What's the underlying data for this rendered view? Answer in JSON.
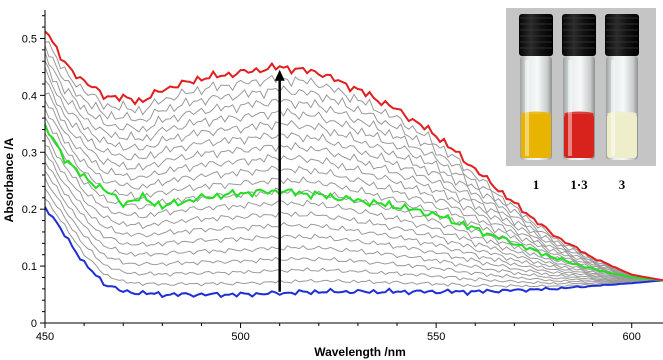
{
  "chart_data": {
    "type": "line",
    "xlabel": "Wavelength /nm",
    "ylabel": "Absorbance /A",
    "xlim": [
      450,
      608
    ],
    "ylim": [
      0,
      0.55
    ],
    "x_ticks": [
      450,
      500,
      550,
      600
    ],
    "y_ticks": [
      0,
      0.1,
      0.2,
      0.3,
      0.4,
      0.5
    ],
    "grid": false,
    "annotation": "upward arrow at about 510 nm indicating absorbance increase",
    "arrow": {
      "x": 510,
      "y_from": 0.055,
      "y_to": 0.445
    },
    "inset_vial_labels": [
      "1",
      "1·3",
      "3"
    ],
    "inset_vial_colors": [
      "#e8b400",
      "#d8231c",
      "#eeeecb"
    ],
    "series": [
      {
        "color": "#1f2fd6",
        "values": [
          [
            450,
            0.205
          ],
          [
            455,
            0.155
          ],
          [
            460,
            0.105
          ],
          [
            465,
            0.07
          ],
          [
            470,
            0.055
          ],
          [
            480,
            0.05
          ],
          [
            500,
            0.05
          ],
          [
            520,
            0.055
          ],
          [
            540,
            0.055
          ],
          [
            560,
            0.055
          ],
          [
            580,
            0.06
          ],
          [
            600,
            0.07
          ],
          [
            608,
            0.075
          ]
        ]
      },
      {
        "color": "#20e020",
        "values": [
          [
            450,
            0.345
          ],
          [
            455,
            0.29
          ],
          [
            460,
            0.255
          ],
          [
            465,
            0.235
          ],
          [
            470,
            0.21
          ],
          [
            475,
            0.22
          ],
          [
            480,
            0.205
          ],
          [
            490,
            0.22
          ],
          [
            500,
            0.228
          ],
          [
            510,
            0.232
          ],
          [
            520,
            0.225
          ],
          [
            530,
            0.215
          ],
          [
            540,
            0.205
          ],
          [
            550,
            0.19
          ],
          [
            560,
            0.165
          ],
          [
            570,
            0.14
          ],
          [
            580,
            0.115
          ],
          [
            590,
            0.095
          ],
          [
            600,
            0.08
          ],
          [
            608,
            0.075
          ]
        ]
      },
      {
        "color": "#e02020",
        "values": [
          [
            450,
            0.52
          ],
          [
            455,
            0.455
          ],
          [
            460,
            0.425
          ],
          [
            465,
            0.4
          ],
          [
            470,
            0.395
          ],
          [
            475,
            0.39
          ],
          [
            480,
            0.41
          ],
          [
            490,
            0.43
          ],
          [
            500,
            0.44
          ],
          [
            510,
            0.45
          ],
          [
            520,
            0.44
          ],
          [
            530,
            0.41
          ],
          [
            540,
            0.375
          ],
          [
            550,
            0.33
          ],
          [
            560,
            0.27
          ],
          [
            570,
            0.21
          ],
          [
            580,
            0.155
          ],
          [
            590,
            0.115
          ],
          [
            600,
            0.085
          ],
          [
            608,
            0.075
          ]
        ]
      }
    ]
  }
}
